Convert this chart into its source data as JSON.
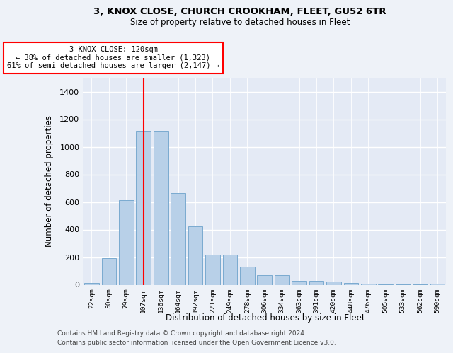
{
  "title1": "3, KNOX CLOSE, CHURCH CROOKHAM, FLEET, GU52 6TR",
  "title2": "Size of property relative to detached houses in Fleet",
  "xlabel": "Distribution of detached houses by size in Fleet",
  "ylabel": "Number of detached properties",
  "categories": [
    "22sqm",
    "50sqm",
    "79sqm",
    "107sqm",
    "136sqm",
    "164sqm",
    "192sqm",
    "221sqm",
    "249sqm",
    "278sqm",
    "306sqm",
    "334sqm",
    "363sqm",
    "391sqm",
    "420sqm",
    "448sqm",
    "476sqm",
    "505sqm",
    "533sqm",
    "562sqm",
    "590sqm"
  ],
  "values": [
    15,
    190,
    615,
    1115,
    1115,
    665,
    425,
    220,
    220,
    130,
    70,
    70,
    30,
    30,
    25,
    15,
    8,
    5,
    5,
    5,
    10
  ],
  "bar_color": "#b8d0e8",
  "bar_edge_color": "#7aaad0",
  "redline_index": 3,
  "annotation_line1": "3 KNOX CLOSE: 120sqm",
  "annotation_line2": "← 38% of detached houses are smaller (1,323)",
  "annotation_line3": "61% of semi-detached houses are larger (2,147) →",
  "ylim_max": 1500,
  "yticks": [
    0,
    200,
    400,
    600,
    800,
    1000,
    1200,
    1400
  ],
  "footer1": "Contains HM Land Registry data © Crown copyright and database right 2024.",
  "footer2": "Contains public sector information licensed under the Open Government Licence v3.0.",
  "fig_bg": "#eef2f8",
  "plot_bg": "#e4eaf5"
}
